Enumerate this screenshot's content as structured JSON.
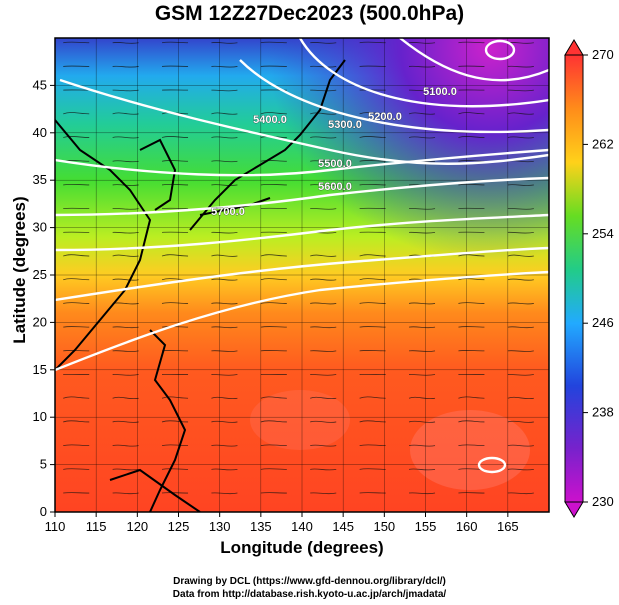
{
  "title": "GSM 12Z27Dec2023 (500.0hPa)",
  "map": {
    "xlabel": "Longitude (degrees)",
    "ylabel": "Latitude  (degrees)",
    "x_ticks": [
      "110",
      "115",
      "120",
      "125",
      "130",
      "135",
      "140",
      "145",
      "150",
      "155",
      "160",
      "165"
    ],
    "y_ticks": [
      "0",
      "5",
      "10",
      "15",
      "20",
      "25",
      "30",
      "35",
      "40",
      "45"
    ],
    "lon_range": [
      110,
      170
    ],
    "lat_range": [
      0,
      50
    ],
    "contours": [
      {
        "label": "5100.0"
      },
      {
        "label": "5200.0"
      },
      {
        "label": "5300.0"
      },
      {
        "label": "5400.0"
      },
      {
        "label": "5500.0"
      },
      {
        "label": "5600.0"
      },
      {
        "label": "5700.0"
      }
    ]
  },
  "colorbar": {
    "ticks": [
      "270",
      "262",
      "254",
      "246",
      "238",
      "230"
    ],
    "range": [
      230,
      270
    ],
    "colors": [
      "#ff3333",
      "#ff8c1a",
      "#ffd11a",
      "#66dd22",
      "#22cc88",
      "#22aaff",
      "#2244dd",
      "#7722cc",
      "#cc11cc"
    ]
  },
  "credits": {
    "line1": "Drawing by DCL (https://www.gfd-dennou.org/library/dcl/)",
    "line2": "Data from http://database.rish.kyoto-u.ac.jp/arch/jmadata/"
  }
}
